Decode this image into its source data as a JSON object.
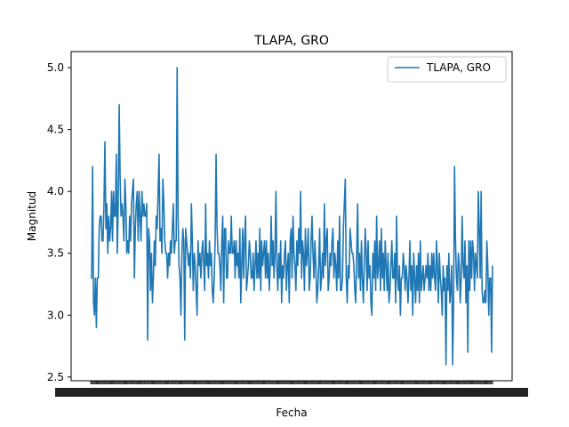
{
  "chart_data": {
    "type": "line",
    "title": "TLAPA, GRO",
    "xlabel": "Fecha",
    "ylabel": "Magnitud",
    "ylim": [
      2.47,
      5.13
    ],
    "yticks": [
      "2.5",
      "3.0",
      "3.5",
      "4.0",
      "4.5",
      "5.0"
    ],
    "legend_position": "top-right",
    "grid": false,
    "series": [
      {
        "name": "TLAPA, GRO",
        "color": "#1f77b4",
        "values": [
          3.3,
          3.3,
          4.2,
          3.1,
          3.0,
          3.3,
          2.9,
          3.3,
          3.3,
          3.7,
          3.8,
          3.8,
          3.6,
          3.6,
          3.9,
          4.4,
          3.7,
          3.9,
          3.5,
          3.8,
          3.6,
          3.7,
          4.0,
          3.6,
          4.0,
          3.8,
          3.8,
          4.3,
          3.5,
          3.9,
          4.7,
          4.1,
          3.8,
          3.9,
          3.8,
          3.6,
          4.1,
          3.9,
          3.5,
          3.6,
          3.5,
          3.8,
          3.6,
          3.9,
          4.0,
          4.1,
          3.3,
          3.7,
          3.9,
          4.0,
          3.6,
          4.0,
          3.8,
          3.6,
          4.0,
          3.8,
          3.9,
          3.8,
          3.8,
          3.9,
          2.8,
          3.7,
          3.6,
          3.2,
          3.5,
          3.1,
          3.3,
          3.6,
          3.4,
          3.8,
          3.7,
          4.0,
          4.3,
          3.6,
          3.7,
          3.5,
          4.1,
          3.9,
          3.6,
          3.5,
          3.5,
          3.3,
          3.5,
          3.4,
          3.6,
          3.5,
          3.7,
          3.9,
          3.5,
          3.6,
          3.6,
          5.0,
          3.8,
          3.4,
          3.3,
          3.0,
          3.5,
          3.7,
          3.6,
          2.8,
          3.7,
          3.6,
          3.5,
          3.4,
          3.5,
          3.3,
          3.9,
          3.6,
          3.2,
          3.5,
          3.4,
          3.2,
          3.0,
          3.6,
          3.4,
          3.5,
          3.3,
          3.5,
          3.6,
          3.4,
          3.2,
          3.9,
          3.4,
          3.5,
          3.3,
          3.6,
          3.4,
          3.5,
          3.2,
          3.1,
          3.3,
          3.6,
          4.3,
          3.7,
          3.5,
          3.5,
          3.4,
          3.2,
          3.6,
          3.8,
          3.1,
          3.7,
          3.7,
          3.3,
          3.3,
          3.6,
          3.5,
          3.5,
          3.8,
          3.5,
          3.5,
          3.6,
          3.3,
          3.6,
          3.4,
          3.5,
          3.3,
          3.7,
          3.1,
          3.4,
          3.7,
          3.3,
          3.6,
          3.8,
          3.2,
          3.3,
          3.4,
          3.6,
          3.5,
          3.3,
          3.3,
          3.5,
          3.2,
          3.4,
          3.6,
          3.3,
          3.5,
          3.3,
          3.7,
          3.2,
          3.6,
          3.4,
          3.5,
          3.6,
          3.3,
          3.6,
          3.3,
          3.5,
          3.2,
          3.4,
          3.8,
          3.4,
          3.6,
          3.3,
          3.5,
          4.0,
          3.4,
          3.2,
          3.5,
          3.3,
          3.6,
          3.1,
          3.4,
          3.3,
          3.5,
          3.6,
          3.2,
          3.4,
          3.5,
          3.1,
          3.6,
          3.7,
          3.3,
          3.8,
          3.5,
          3.4,
          3.2,
          3.6,
          3.4,
          3.7,
          3.5,
          4.0,
          3.3,
          3.6,
          3.5,
          3.2,
          3.7,
          3.4,
          3.5,
          3.7,
          3.2,
          3.3,
          3.6,
          3.8,
          3.5,
          3.3,
          3.6,
          3.4,
          3.1,
          3.2,
          3.4,
          3.7,
          3.2,
          3.3,
          3.5,
          3.3,
          3.9,
          3.4,
          3.6,
          3.7,
          3.2,
          3.3,
          3.5,
          3.4,
          3.6,
          3.7,
          3.3,
          3.5,
          3.4,
          3.2,
          3.6,
          3.3,
          3.8,
          3.2,
          3.2,
          3.3,
          3.7,
          3.9,
          4.1,
          3.3,
          3.1,
          3.4,
          3.3,
          3.7,
          3.6,
          3.5,
          3.5,
          3.4,
          3.2,
          3.1,
          3.5,
          3.9,
          3.3,
          3.5,
          3.2,
          3.6,
          3.3,
          3.1,
          3.4,
          3.7,
          3.5,
          3.2,
          3.6,
          3.3,
          3.4,
          3.1,
          3.0,
          3.5,
          3.3,
          3.6,
          3.2,
          3.8,
          3.3,
          3.4,
          3.6,
          3.2,
          3.7,
          3.3,
          3.5,
          3.2,
          3.6,
          3.4,
          3.2,
          3.5,
          3.1,
          3.2,
          3.4,
          3.6,
          3.3,
          3.3,
          3.5,
          3.1,
          3.8,
          3.3,
          3.2,
          3.4,
          3.0,
          3.3,
          3.3,
          3.5,
          3.4,
          3.2,
          3.4,
          3.3,
          3.1,
          3.3,
          3.6,
          3.2,
          3.4,
          3.0,
          3.5,
          3.3,
          3.1,
          3.4,
          3.2,
          3.5,
          3.1,
          3.6,
          3.2,
          3.3,
          3.4,
          3.2,
          3.3,
          3.4,
          3.3,
          3.5,
          3.2,
          3.4,
          3.2,
          3.5,
          3.3,
          3.5,
          3.3,
          3.2,
          3.6,
          3.4,
          3.1,
          3.5,
          3.3,
          3.2,
          3.0,
          3.4,
          3.2,
          3.3,
          2.6,
          3.4,
          3.2,
          3.5,
          3.1,
          3.2,
          3.4,
          2.6,
          3.1,
          4.2,
          3.6,
          3.3,
          3.2,
          3.5,
          3.4,
          3.1,
          3.3,
          3.8,
          3.4,
          3.3,
          3.6,
          3.1,
          3.4,
          2.7,
          3.6,
          3.2,
          3.6,
          3.3,
          3.6,
          3.5,
          3.2,
          3.5,
          3.4,
          3.3,
          4.0,
          3.7,
          3.3,
          4.0,
          3.2,
          3.1,
          3.1,
          3.2,
          3.1,
          3.6,
          3.4,
          3.0,
          3.3,
          3.3,
          2.7,
          3.4
        ]
      }
    ]
  }
}
